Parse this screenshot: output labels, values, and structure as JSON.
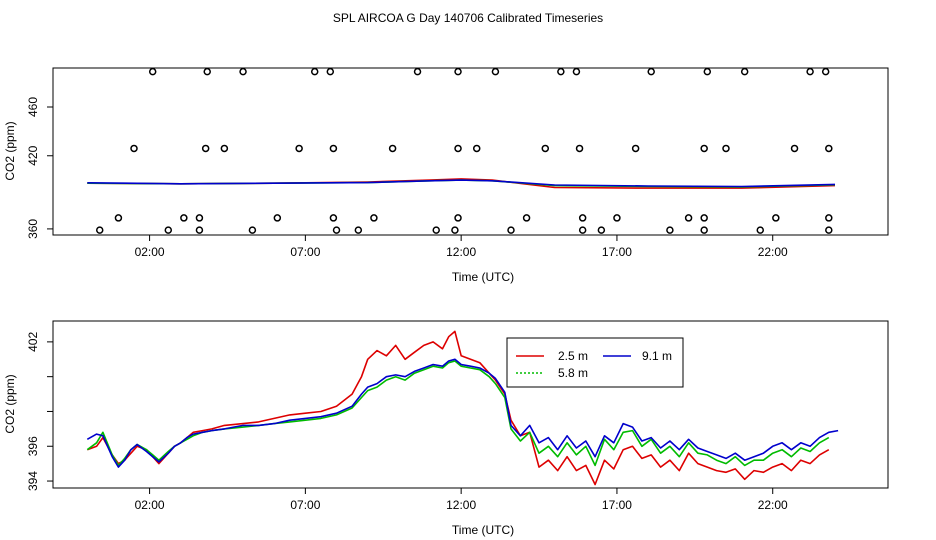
{
  "title": "SPL AIRCOA G  Day 140706  Calibrated Timeseries",
  "chart_data": [
    {
      "type": "scatter",
      "xlabel": "Time (UTC)",
      "ylabel": "CO2 (ppm)",
      "xlim": [
        -1.1,
        25.7
      ],
      "ylim": [
        355,
        492
      ],
      "x_ticks": [
        2,
        7,
        12,
        17,
        22
      ],
      "x_tick_labels": [
        "02:00",
        "07:00",
        "12:00",
        "17:00",
        "22:00"
      ],
      "y_ticks": [
        360,
        420,
        460
      ],
      "y_tick_labels": [
        "360",
        "420",
        "460"
      ],
      "grid": false,
      "points": [
        {
          "x": 0.4,
          "y": 359
        },
        {
          "x": 1.5,
          "y": 426
        },
        {
          "x": 1.0,
          "y": 369
        },
        {
          "x": 2.1,
          "y": 489
        },
        {
          "x": 2.6,
          "y": 359
        },
        {
          "x": 3.1,
          "y": 369
        },
        {
          "x": 3.6,
          "y": 359
        },
        {
          "x": 3.6,
          "y": 369
        },
        {
          "x": 3.8,
          "y": 426
        },
        {
          "x": 3.85,
          "y": 489
        },
        {
          "x": 4.4,
          "y": 426
        },
        {
          "x": 5.0,
          "y": 489
        },
        {
          "x": 5.3,
          "y": 359
        },
        {
          "x": 6.1,
          "y": 369
        },
        {
          "x": 6.8,
          "y": 426
        },
        {
          "x": 7.3,
          "y": 489
        },
        {
          "x": 7.8,
          "y": 489
        },
        {
          "x": 7.9,
          "y": 369
        },
        {
          "x": 7.9,
          "y": 426
        },
        {
          "x": 8.0,
          "y": 359
        },
        {
          "x": 8.7,
          "y": 359
        },
        {
          "x": 9.2,
          "y": 369
        },
        {
          "x": 9.8,
          "y": 426
        },
        {
          "x": 10.6,
          "y": 489
        },
        {
          "x": 11.2,
          "y": 359
        },
        {
          "x": 11.9,
          "y": 369
        },
        {
          "x": 11.8,
          "y": 359
        },
        {
          "x": 11.9,
          "y": 426
        },
        {
          "x": 11.9,
          "y": 489
        },
        {
          "x": 12.5,
          "y": 426
        },
        {
          "x": 13.1,
          "y": 489
        },
        {
          "x": 13.6,
          "y": 359
        },
        {
          "x": 14.1,
          "y": 369
        },
        {
          "x": 14.7,
          "y": 426
        },
        {
          "x": 15.2,
          "y": 489
        },
        {
          "x": 15.7,
          "y": 489
        },
        {
          "x": 15.8,
          "y": 426
        },
        {
          "x": 15.9,
          "y": 369
        },
        {
          "x": 15.9,
          "y": 359
        },
        {
          "x": 16.5,
          "y": 359
        },
        {
          "x": 17.0,
          "y": 369
        },
        {
          "x": 17.6,
          "y": 426
        },
        {
          "x": 18.1,
          "y": 489
        },
        {
          "x": 18.7,
          "y": 359
        },
        {
          "x": 19.3,
          "y": 369
        },
        {
          "x": 19.8,
          "y": 369
        },
        {
          "x": 19.8,
          "y": 359
        },
        {
          "x": 19.8,
          "y": 426
        },
        {
          "x": 19.9,
          "y": 489
        },
        {
          "x": 20.5,
          "y": 426
        },
        {
          "x": 21.1,
          "y": 489
        },
        {
          "x": 21.6,
          "y": 359
        },
        {
          "x": 22.1,
          "y": 369
        },
        {
          "x": 22.7,
          "y": 426
        },
        {
          "x": 23.2,
          "y": 489
        },
        {
          "x": 23.7,
          "y": 489
        },
        {
          "x": 23.8,
          "y": 426
        },
        {
          "x": 23.8,
          "y": 369
        },
        {
          "x": 23.8,
          "y": 359
        }
      ],
      "series": [
        {
          "color": "#dd0000",
          "x": [
            0,
            3,
            6,
            9,
            11,
            12,
            13,
            15,
            18,
            21,
            24
          ],
          "y": [
            397.5,
            397,
            397.5,
            398.5,
            400,
            401,
            400,
            394,
            393.5,
            393.5,
            395.5
          ]
        },
        {
          "color": "#00bb00",
          "x": [
            0,
            3,
            6,
            9,
            11,
            12,
            13,
            15,
            18,
            21,
            24
          ],
          "y": [
            397.5,
            397,
            397.5,
            398,
            399.5,
            400,
            399.5,
            395.5,
            394.8,
            394.5,
            396.2
          ]
        },
        {
          "color": "#0000cc",
          "x": [
            0,
            3,
            6,
            9,
            11,
            12,
            13,
            15,
            18,
            21,
            24
          ],
          "y": [
            397.8,
            397,
            397.5,
            398,
            399.5,
            400,
            399.5,
            396,
            395.2,
            394.8,
            396.5
          ]
        }
      ]
    },
    {
      "type": "line",
      "xlabel": "Time (UTC)",
      "ylabel": "CO2 (ppm)",
      "xlim": [
        -1.1,
        25.7
      ],
      "ylim": [
        393.6,
        403.2
      ],
      "x_ticks": [
        2,
        7,
        12,
        17,
        22
      ],
      "x_tick_labels": [
        "02:00",
        "07:00",
        "12:00",
        "17:00",
        "22:00"
      ],
      "y_ticks": [
        394,
        396,
        398,
        400,
        402
      ],
      "y_tick_labels": [
        "394",
        "396",
        "",
        "",
        "402"
      ],
      "grid": false,
      "legend": {
        "placement": "top-right",
        "entries": [
          {
            "name": "2.5 m",
            "color": "#dd0000",
            "dash": false
          },
          {
            "name": "5.8 m",
            "color": "#00bb00",
            "dash": true
          },
          {
            "name": "9.1 m",
            "color": "#0000cc",
            "dash": false
          }
        ]
      },
      "series": [
        {
          "name": "2.5 m",
          "color": "#dd0000",
          "x": [
            0,
            0.3,
            0.5,
            0.8,
            1.0,
            1.2,
            1.4,
            1.6,
            1.9,
            2.1,
            2.3,
            2.6,
            2.8,
            3.0,
            3.2,
            3.4,
            3.7,
            4.0,
            4.4,
            5.0,
            5.5,
            6.0,
            6.5,
            7.0,
            7.5,
            8.0,
            8.5,
            8.8,
            9.0,
            9.3,
            9.6,
            9.9,
            10.2,
            10.5,
            10.8,
            11.1,
            11.4,
            11.6,
            11.8,
            12.0,
            12.3,
            12.6,
            12.9,
            13.1,
            13.4,
            13.6,
            13.9,
            14.2,
            14.5,
            14.8,
            15.1,
            15.4,
            15.7,
            16.0,
            16.3,
            16.6,
            16.9,
            17.2,
            17.5,
            17.8,
            18.1,
            18.4,
            18.7,
            19.0,
            19.3,
            19.6,
            19.9,
            20.2,
            20.5,
            20.8,
            21.1,
            21.4,
            21.7,
            22.0,
            22.3,
            22.6,
            22.9,
            23.2,
            23.5,
            23.8
          ],
          "y": [
            395.8,
            396.0,
            396.5,
            395.5,
            395.0,
            395.2,
            395.6,
            396.0,
            395.8,
            395.4,
            395.0,
            395.6,
            396.0,
            396.2,
            396.5,
            396.8,
            396.9,
            397.0,
            397.2,
            397.3,
            397.4,
            397.6,
            397.8,
            397.9,
            398.0,
            398.3,
            399.0,
            400.0,
            401.0,
            401.5,
            401.2,
            401.8,
            401.0,
            401.4,
            401.8,
            402.0,
            401.6,
            402.3,
            402.6,
            401.2,
            401.0,
            400.8,
            400.2,
            399.8,
            399.0,
            397.5,
            396.6,
            396.8,
            394.8,
            395.2,
            394.6,
            395.4,
            394.6,
            394.9,
            393.8,
            395.2,
            394.7,
            395.8,
            396.0,
            395.3,
            395.5,
            394.8,
            395.2,
            394.6,
            395.6,
            395.0,
            394.8,
            394.6,
            394.5,
            394.7,
            394.1,
            394.6,
            394.5,
            394.8,
            395.0,
            394.6,
            395.2,
            395.0,
            395.5,
            395.8
          ]
        },
        {
          "name": "5.8 m",
          "color": "#00bb00",
          "x": [
            0,
            0.3,
            0.5,
            0.8,
            1.0,
            1.2,
            1.4,
            1.6,
            1.9,
            2.1,
            2.3,
            2.6,
            2.8,
            3.0,
            3.2,
            3.4,
            3.7,
            4.0,
            4.4,
            5.0,
            5.5,
            6.0,
            6.5,
            7.0,
            7.5,
            8.0,
            8.5,
            8.8,
            9.0,
            9.3,
            9.6,
            9.9,
            10.2,
            10.5,
            10.8,
            11.1,
            11.4,
            11.6,
            11.8,
            12.0,
            12.3,
            12.6,
            12.9,
            13.1,
            13.4,
            13.6,
            13.9,
            14.2,
            14.5,
            14.8,
            15.1,
            15.4,
            15.7,
            16.0,
            16.3,
            16.6,
            16.9,
            17.2,
            17.5,
            17.8,
            18.1,
            18.4,
            18.7,
            19.0,
            19.3,
            19.6,
            19.9,
            20.2,
            20.5,
            20.8,
            21.1,
            21.4,
            21.7,
            22.0,
            22.3,
            22.6,
            22.9,
            23.2,
            23.5,
            23.8
          ],
          "y": [
            395.8,
            396.2,
            396.8,
            395.5,
            394.9,
            395.3,
            395.8,
            396.1,
            395.8,
            395.5,
            395.2,
            395.7,
            396.0,
            396.2,
            396.4,
            396.6,
            396.8,
            396.9,
            397.0,
            397.1,
            397.2,
            397.3,
            397.4,
            397.5,
            397.6,
            397.8,
            398.2,
            398.8,
            399.2,
            399.4,
            399.8,
            400.0,
            399.8,
            400.2,
            400.4,
            400.6,
            400.5,
            400.8,
            400.9,
            400.6,
            400.5,
            400.4,
            400.0,
            399.6,
            398.8,
            397.0,
            396.3,
            396.8,
            395.6,
            396.0,
            395.4,
            396.2,
            395.5,
            396.0,
            394.9,
            396.4,
            395.8,
            396.8,
            396.9,
            396.0,
            396.4,
            395.6,
            396.0,
            395.4,
            396.2,
            395.6,
            395.5,
            395.2,
            395.0,
            395.4,
            394.9,
            395.2,
            395.2,
            395.6,
            395.8,
            395.4,
            395.9,
            395.7,
            396.2,
            396.5
          ]
        },
        {
          "name": "9.1 m",
          "color": "#0000cc",
          "x": [
            0,
            0.3,
            0.5,
            0.8,
            1.0,
            1.2,
            1.4,
            1.6,
            1.9,
            2.1,
            2.3,
            2.6,
            2.8,
            3.0,
            3.2,
            3.4,
            3.7,
            4.0,
            4.4,
            5.0,
            5.5,
            6.0,
            6.5,
            7.0,
            7.5,
            8.0,
            8.5,
            8.8,
            9.0,
            9.3,
            9.6,
            9.9,
            10.2,
            10.5,
            10.8,
            11.1,
            11.4,
            11.6,
            11.8,
            12.0,
            12.3,
            12.6,
            12.9,
            13.1,
            13.4,
            13.6,
            13.9,
            14.2,
            14.5,
            14.8,
            15.1,
            15.4,
            15.7,
            16.0,
            16.3,
            16.6,
            16.9,
            17.2,
            17.5,
            17.8,
            18.1,
            18.4,
            18.7,
            19.0,
            19.3,
            19.6,
            19.9,
            20.2,
            20.5,
            20.8,
            21.1,
            21.4,
            21.7,
            22.0,
            22.3,
            22.6,
            22.9,
            23.2,
            23.5,
            23.8,
            24.1
          ],
          "y": [
            396.4,
            396.7,
            396.6,
            395.4,
            394.8,
            395.2,
            395.8,
            396.1,
            395.7,
            395.4,
            395.1,
            395.6,
            396.0,
            396.2,
            396.5,
            396.7,
            396.8,
            396.9,
            397.0,
            397.2,
            397.2,
            397.3,
            397.5,
            397.6,
            397.7,
            397.9,
            398.3,
            399.0,
            399.4,
            399.6,
            400.0,
            400.1,
            400.0,
            400.3,
            400.5,
            400.7,
            400.6,
            400.9,
            401.0,
            400.7,
            400.6,
            400.5,
            400.2,
            399.9,
            399.1,
            397.2,
            396.6,
            397.2,
            396.2,
            396.5,
            395.8,
            396.6,
            395.9,
            396.3,
            395.4,
            396.6,
            396.2,
            397.3,
            397.1,
            396.3,
            396.5,
            395.9,
            396.3,
            395.8,
            396.4,
            395.9,
            395.7,
            395.5,
            395.3,
            395.6,
            395.2,
            395.4,
            395.6,
            396.0,
            396.2,
            395.8,
            396.2,
            396.0,
            396.5,
            396.8,
            396.9
          ]
        }
      ]
    }
  ]
}
